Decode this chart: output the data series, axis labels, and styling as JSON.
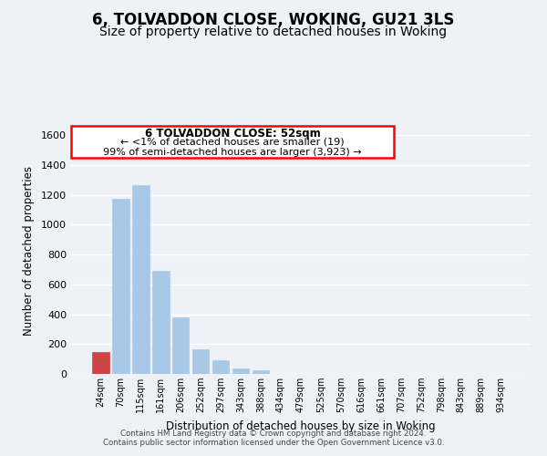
{
  "title": "6, TOLVADDON CLOSE, WOKING, GU21 3LS",
  "subtitle": "Size of property relative to detached houses in Woking",
  "xlabel": "Distribution of detached houses by size in Woking",
  "ylabel": "Number of detached properties",
  "bar_labels": [
    "24sqm",
    "70sqm",
    "115sqm",
    "161sqm",
    "206sqm",
    "252sqm",
    "297sqm",
    "343sqm",
    "388sqm",
    "434sqm",
    "479sqm",
    "525sqm",
    "570sqm",
    "616sqm",
    "661sqm",
    "707sqm",
    "752sqm",
    "798sqm",
    "843sqm",
    "889sqm",
    "934sqm"
  ],
  "bar_values": [
    148,
    1175,
    1262,
    688,
    378,
    162,
    94,
    38,
    22,
    0,
    0,
    0,
    0,
    0,
    0,
    0,
    0,
    0,
    0,
    0,
    0
  ],
  "bar_color": "#a8c8e8",
  "highlight_bar_index": 0,
  "highlight_bar_color": "#cc4444",
  "ylim": [
    0,
    1650
  ],
  "yticks": [
    0,
    200,
    400,
    600,
    800,
    1000,
    1200,
    1400,
    1600
  ],
  "annotation_title": "6 TOLVADDON CLOSE: 52sqm",
  "annotation_line1": "← <1% of detached houses are smaller (19)",
  "annotation_line2": "99% of semi-detached houses are larger (3,923) →",
  "footer_line1": "Contains HM Land Registry data © Crown copyright and database right 2024.",
  "footer_line2": "Contains public sector information licensed under the Open Government Licence v3.0.",
  "background_color": "#eef2f7",
  "grid_color": "#ffffff",
  "title_fontsize": 12,
  "subtitle_fontsize": 10
}
